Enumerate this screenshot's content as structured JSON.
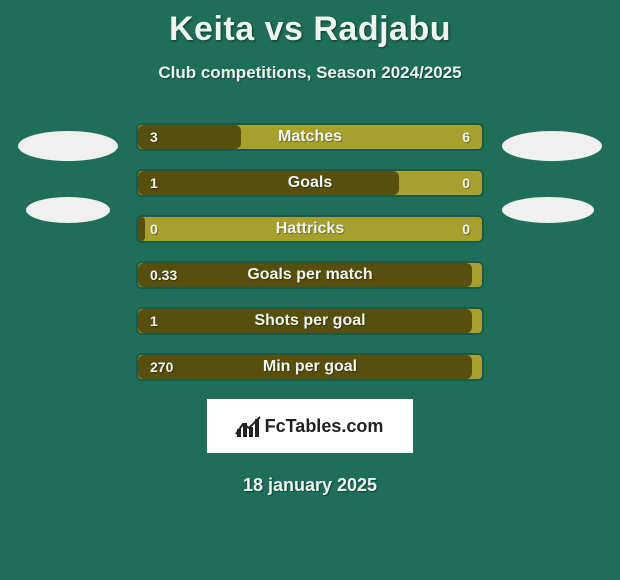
{
  "background_color": "#1f6e59",
  "text_color": "#ecf5f0",
  "title": "Keita vs Radjabu",
  "subtitle": "Club competitions, Season 2024/2025",
  "ellipse_color": "#f0f0f0",
  "bar_bg_color": "#a8a02d",
  "bar_fill_color": "#584f0f",
  "bar_border_color": "#1a5a48",
  "logo_bg": "#ffffff",
  "logo_text": "FcTables.com",
  "date": "18 january 2025",
  "bars": [
    {
      "label": "Matches",
      "left": "3",
      "right": "6",
      "fill_pct": 30
    },
    {
      "label": "Goals",
      "left": "1",
      "right": "0",
      "fill_pct": 76
    },
    {
      "label": "Hattricks",
      "left": "0",
      "right": "0",
      "fill_pct": 2
    },
    {
      "label": "Goals per match",
      "left": "0.33",
      "right": "",
      "fill_pct": 97
    },
    {
      "label": "Shots per goal",
      "left": "1",
      "right": "",
      "fill_pct": 97
    },
    {
      "label": "Min per goal",
      "left": "270",
      "right": "",
      "fill_pct": 97
    }
  ]
}
